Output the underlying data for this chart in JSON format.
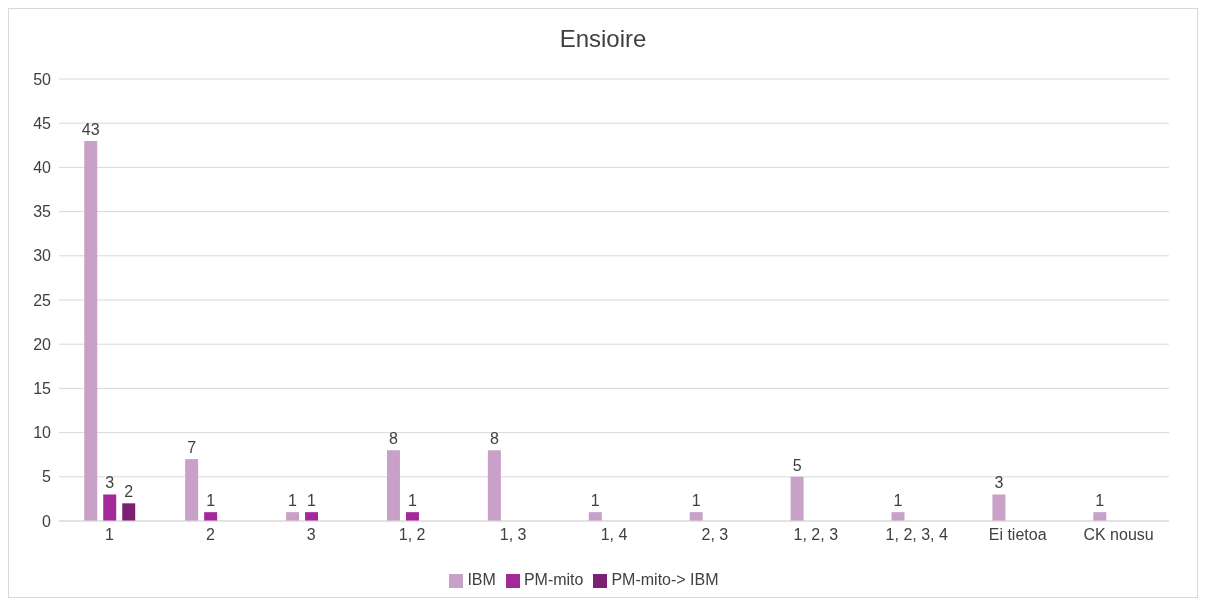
{
  "chart_data": {
    "type": "bar",
    "title": "Ensioire",
    "categories": [
      "1",
      "2",
      "3",
      "1, 2",
      "1, 3",
      "1, 4",
      "2, 3",
      "1, 2, 3",
      "1, 2, 3, 4",
      "Ei tietoa",
      "CK nousu"
    ],
    "series": [
      {
        "name": "IBM",
        "color": "#c9a0c8",
        "values": [
          43,
          7,
          1,
          8,
          8,
          1,
          1,
          5,
          1,
          3,
          1
        ]
      },
      {
        "name": "PM-mito",
        "color": "#a3299b",
        "values": [
          3,
          1,
          1,
          1,
          null,
          null,
          null,
          null,
          null,
          null,
          null
        ]
      },
      {
        "name": "PM-mito-> IBM",
        "color": "#7b2072",
        "values": [
          2,
          null,
          null,
          null,
          null,
          null,
          null,
          null,
          null,
          null,
          null
        ]
      }
    ],
    "ylim": [
      0,
      50
    ],
    "yticks": [
      0,
      5,
      10,
      15,
      20,
      25,
      30,
      35,
      40,
      45,
      50
    ],
    "grid": "y",
    "legend": "bottom",
    "data_labels": true
  }
}
